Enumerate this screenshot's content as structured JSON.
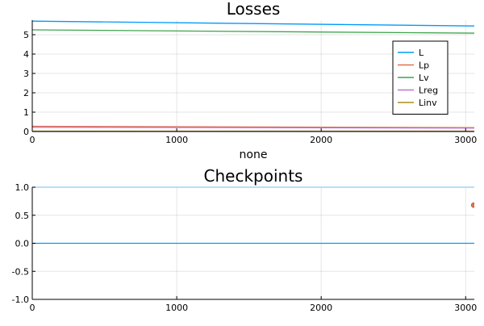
{
  "chart_data": [
    {
      "type": "line",
      "title": "Losses",
      "xlabel": "none",
      "ylabel": "",
      "xlim": [
        0,
        3060
      ],
      "ylim": [
        0,
        5.75
      ],
      "xticks": [
        0,
        1000,
        2000,
        3000
      ],
      "yticks": [
        0,
        1,
        2,
        3,
        4,
        5
      ],
      "grid": true,
      "legend_position": "top-right",
      "series": [
        {
          "name": "L",
          "color": "#009AF9",
          "x": [
            0,
            3060
          ],
          "y": [
            5.7,
            5.45
          ]
        },
        {
          "name": "Lp",
          "color": "#E26F46",
          "x": [
            0,
            3060
          ],
          "y": [
            0.27,
            0.2
          ]
        },
        {
          "name": "Lv",
          "color": "#3DA44D",
          "x": [
            0,
            3060
          ],
          "y": [
            5.25,
            5.08
          ]
        },
        {
          "name": "Lreg",
          "color": "#C271D2",
          "x": [
            0,
            3060
          ],
          "y": [
            0.22,
            0.18
          ]
        },
        {
          "name": "Linv",
          "color": "#AC8E18",
          "x": [
            0,
            3060
          ],
          "y": [
            0.02,
            0.02
          ]
        }
      ]
    },
    {
      "type": "line",
      "title": "Checkpoints",
      "xlabel": "",
      "ylabel": "",
      "xlim": [
        0,
        3060
      ],
      "ylim": [
        -1.0,
        1.0
      ],
      "xticks": [
        0,
        1000,
        2000,
        3000
      ],
      "yticks": [
        -1.0,
        -0.5,
        0.0,
        0.5,
        1.0
      ],
      "ytick_labels": [
        "-1.0",
        "-0.5",
        "0.0",
        "0.5",
        "1.0"
      ],
      "grid": true,
      "hlines": [
        {
          "y": 1.0,
          "color": "#8FCCF5"
        },
        {
          "y": 0.0,
          "color": "#009AF9"
        }
      ],
      "points": [
        {
          "x": 3055,
          "y": 0.68,
          "color": "#E26F46"
        }
      ]
    }
  ]
}
